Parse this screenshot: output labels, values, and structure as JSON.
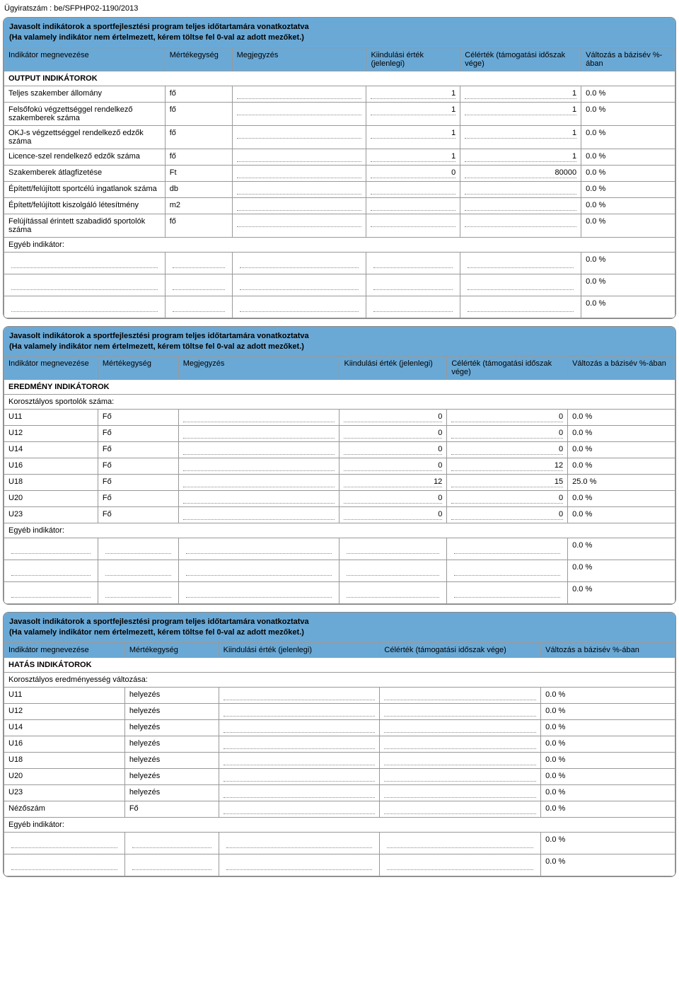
{
  "doc_id": "Ügyiratszám : be/SFPHP02-1190/2013",
  "section_title_line1": "Javasolt indikátorok a sportfejlesztési program teljes időtartamára vonatkoztatva",
  "section_title_line2": "(Ha valamely indikátor nem értelmezett, kérem töltse fel 0-val az adott mezőket.)",
  "headers": {
    "name": "Indikátor megnevezése",
    "unit": "Mértékegység",
    "note": "Megjegyzés",
    "start": "Kiindulási érték (jelenlegi)",
    "target": "Célérték (támogatási időszak vége)",
    "change": "Változás a bázisév %-ában",
    "change2": "Változás a bázisév %-ában"
  },
  "output": {
    "heading": "OUTPUT INDIKÁTOROK",
    "rows": [
      {
        "name": "Teljes szakember állomány",
        "unit": "fő",
        "start": "1",
        "target": "1",
        "change": "0.0 %"
      },
      {
        "name": "Felsőfokú végzettséggel rendelkező szakemberek száma",
        "unit": "fő",
        "start": "1",
        "target": "1",
        "change": "0.0 %"
      },
      {
        "name": "OKJ-s végzettséggel rendelkező edzők száma",
        "unit": "fő",
        "start": "1",
        "target": "1",
        "change": "0.0 %"
      },
      {
        "name": "Licence-szel rendelkező edzők száma",
        "unit": "fő",
        "start": "1",
        "target": "1",
        "change": "0.0 %"
      },
      {
        "name": "Szakemberek átlagfizetése",
        "unit": "Ft",
        "start": "0",
        "target": "80000",
        "change": "0.0 %"
      },
      {
        "name": "Épített/felújított sportcélú ingatlanok száma",
        "unit": "db",
        "start": "",
        "target": "",
        "change": "0.0 %"
      },
      {
        "name": "Épített/felújított kiszolgáló létesítmény",
        "unit": "m2",
        "start": "",
        "target": "",
        "change": "0.0 %"
      },
      {
        "name": "Felújítással érintett szabadidő sportolók száma",
        "unit": "fő",
        "start": "",
        "target": "",
        "change": "0.0 %"
      }
    ],
    "egyeb_label": "Egyéb indikátor:",
    "blank_change": "0.0 %"
  },
  "result": {
    "heading": "EREDMÉNY INDIKÁTOROK",
    "sublabel": "Korosztályos sportolók száma:",
    "rows": [
      {
        "name": "U11",
        "unit": "Fő",
        "start": "0",
        "target": "0",
        "change": "0.0 %"
      },
      {
        "name": "U12",
        "unit": "Fő",
        "start": "0",
        "target": "0",
        "change": "0.0 %"
      },
      {
        "name": "U14",
        "unit": "Fő",
        "start": "0",
        "target": "0",
        "change": "0.0 %"
      },
      {
        "name": "U16",
        "unit": "Fő",
        "start": "0",
        "target": "12",
        "change": "0.0 %"
      },
      {
        "name": "U18",
        "unit": "Fő",
        "start": "12",
        "target": "15",
        "change": "25.0 %"
      },
      {
        "name": "U20",
        "unit": "Fő",
        "start": "0",
        "target": "0",
        "change": "0.0 %"
      },
      {
        "name": "U23",
        "unit": "Fő",
        "start": "0",
        "target": "0",
        "change": "0.0 %"
      }
    ],
    "egyeb_label": "Egyéb indikátor:",
    "blank_change": "0.0 %"
  },
  "effect": {
    "heading": "HATÁS INDIKÁTOROK",
    "sublabel": "Korosztályos eredményesség változása:",
    "rows": [
      {
        "name": "U11",
        "unit": "helyezés",
        "change": "0.0 %"
      },
      {
        "name": "U12",
        "unit": "helyezés",
        "change": "0.0 %"
      },
      {
        "name": "U14",
        "unit": "helyezés",
        "change": "0.0 %"
      },
      {
        "name": "U16",
        "unit": "helyezés",
        "change": "0.0 %"
      },
      {
        "name": "U18",
        "unit": "helyezés",
        "change": "0.0 %"
      },
      {
        "name": "U20",
        "unit": "helyezés",
        "change": "0.0 %"
      },
      {
        "name": "U23",
        "unit": "helyezés",
        "change": "0.0 %"
      },
      {
        "name": "Nézőszám",
        "unit": "Fő",
        "change": "0.0 %"
      }
    ],
    "egyeb_label": "Egyéb indikátor:",
    "blank_change": "0.0 %"
  }
}
